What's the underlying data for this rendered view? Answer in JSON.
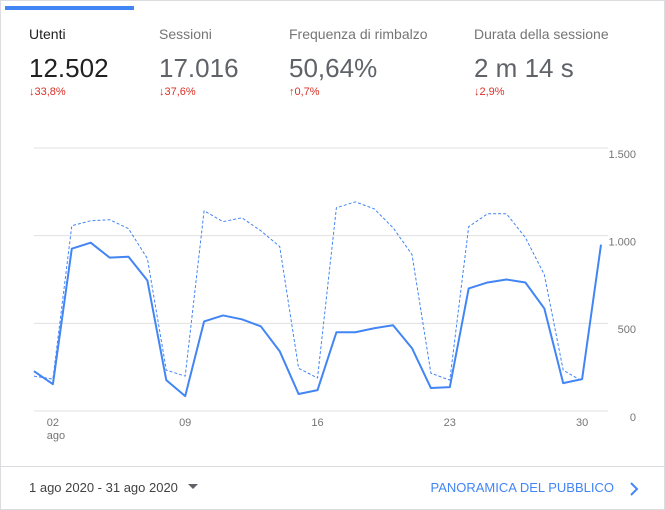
{
  "tabs": [
    {
      "label": "Utenti",
      "value": "12.502",
      "change": "↓33,8%"
    },
    {
      "label": "Sessioni",
      "value": "17.016",
      "change": "↓37,6%"
    },
    {
      "label": "Frequenza di rimbalzo",
      "value": "50,64%",
      "change": "↑0,7%"
    },
    {
      "label": "Durata della sessione",
      "value": "2 m 14 s",
      "change": "↓2,9%"
    }
  ],
  "chart_data": {
    "type": "line",
    "categories": [
      null,
      "02",
      null,
      null,
      null,
      null,
      null,
      null,
      "09",
      null,
      null,
      null,
      null,
      null,
      null,
      "16",
      null,
      null,
      null,
      null,
      null,
      null,
      "23",
      null,
      null,
      null,
      null,
      null,
      null,
      "30",
      null
    ],
    "x_month_label": "ago",
    "series": [
      {
        "color": "#4285f4",
        "style": "solid",
        "values": [
          227,
          153,
          926,
          960,
          875,
          880,
          744,
          176,
          85,
          511,
          545,
          523,
          483,
          341,
          97,
          119,
          449,
          449,
          472,
          489,
          358,
          131,
          136,
          699,
          733,
          750,
          733,
          585,
          159,
          182,
          949
        ]
      },
      {
        "color": "#4285f4",
        "style": "dashed",
        "values": [
          199,
          182,
          1057,
          1085,
          1091,
          1040,
          869,
          233,
          199,
          1142,
          1080,
          1102,
          1028,
          938,
          244,
          188,
          1159,
          1193,
          1153,
          1045,
          892,
          216,
          176,
          1051,
          1125,
          1125,
          989,
          778,
          233,
          170,
          null
        ]
      }
    ],
    "ylim": [
      0,
      1500
    ],
    "yticks": [
      0,
      500,
      {
        "value": 1000,
        "label": "1.000"
      },
      {
        "value": 1500,
        "label": "1.500"
      }
    ],
    "grid": true
  },
  "footer": {
    "date_range": "1 ago 2020 - 31 ago 2020",
    "link": "PANORAMICA DEL PUBBLICO"
  }
}
